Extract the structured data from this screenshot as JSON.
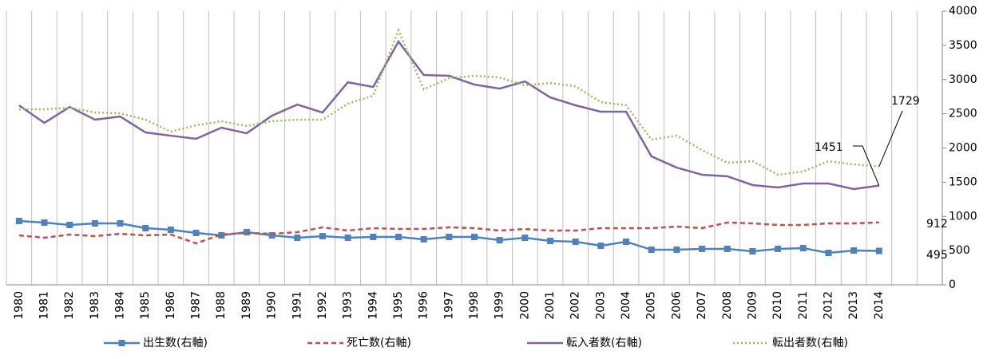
{
  "chart_data": {
    "type": "line",
    "categories": [
      "1980",
      "1981",
      "1982",
      "1983",
      "1984",
      "1985",
      "1986",
      "1987",
      "1988",
      "1989",
      "1990",
      "1991",
      "1992",
      "1993",
      "1994",
      "1995",
      "1996",
      "1997",
      "1998",
      "1999",
      "2000",
      "2001",
      "2002",
      "2003",
      "2004",
      "2005",
      "2006",
      "2007",
      "2008",
      "2009",
      "2010",
      "2011",
      "2012",
      "2013",
      "2014",
      null,
      null
    ],
    "series": [
      {
        "name": "出生数(右軸)",
        "color": "#4f81bd",
        "style": "solid",
        "marker": "square",
        "axis": "y2",
        "values": [
          933,
          910,
          875,
          898,
          898,
          828,
          805,
          758,
          723,
          770,
          723,
          688,
          711,
          688,
          700,
          700,
          665,
          700,
          700,
          653,
          688,
          641,
          630,
          571,
          630,
          513,
          513,
          525,
          525,
          490,
          525,
          536,
          466,
          501,
          495,
          null,
          null
        ]
      },
      {
        "name": "死亡数(右軸)",
        "color": "#c0504d",
        "style": "dashed",
        "axis": "y2",
        "values": [
          723,
          688,
          735,
          711,
          746,
          723,
          735,
          606,
          735,
          758,
          746,
          770,
          840,
          793,
          828,
          816,
          816,
          840,
          828,
          793,
          816,
          793,
          793,
          828,
          828,
          828,
          851,
          828,
          910,
          898,
          875,
          875,
          898,
          898,
          912,
          null,
          null
        ]
      },
      {
        "name": "転入者数(右軸)",
        "color": "#8064a2",
        "style": "solid",
        "axis": "y2",
        "values": [
          2624,
          2367,
          2600,
          2414,
          2460,
          2227,
          2180,
          2134,
          2297,
          2215,
          2472,
          2635,
          2518,
          2961,
          2892,
          3556,
          3067,
          3055,
          2927,
          2868,
          2973,
          2740,
          2624,
          2530,
          2530,
          1877,
          1714,
          1609,
          1586,
          1458,
          1423,
          1481,
          1481,
          1400,
          1451,
          null,
          null
        ]
      },
      {
        "name": "転出者数(右軸)",
        "color": "#9bbb59",
        "style": "dotted",
        "axis": "y2",
        "values": [
          2565,
          2565,
          2589,
          2519,
          2507,
          2414,
          2239,
          2332,
          2391,
          2321,
          2391,
          2414,
          2414,
          2647,
          2764,
          3720,
          2857,
          3020,
          3055,
          3032,
          2915,
          2950,
          2903,
          2670,
          2624,
          2122,
          2180,
          1971,
          1784,
          1807,
          1609,
          1656,
          1807,
          1760,
          1729,
          null,
          null
        ]
      }
    ],
    "y2lim": [
      0,
      4000
    ],
    "y2ticks": [
      0,
      500,
      1000,
      1500,
      2000,
      2500,
      3000,
      3500,
      4000
    ],
    "grid": "x"
  }
}
